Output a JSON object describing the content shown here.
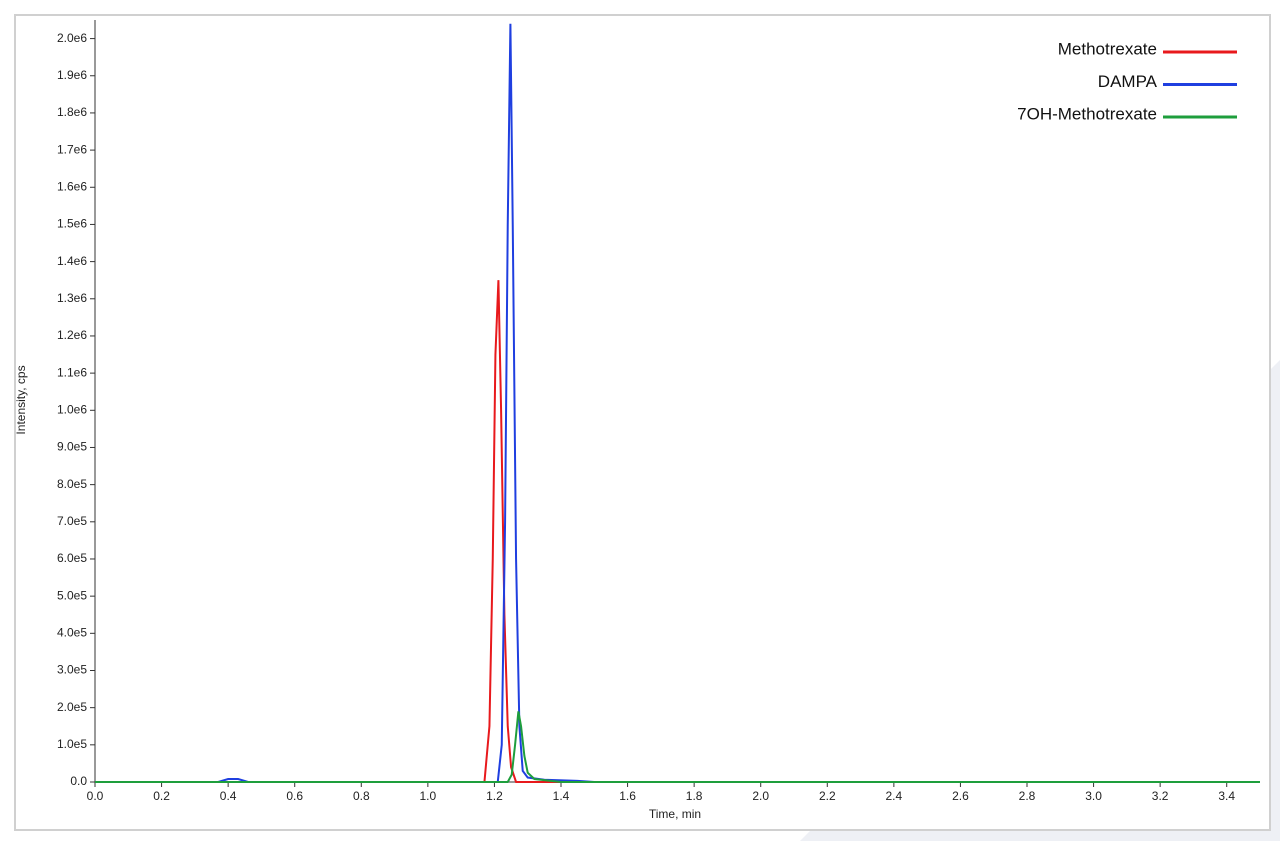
{
  "chart_data": {
    "type": "line",
    "xlabel": "Time, min",
    "ylabel": "Intensity, cps",
    "xlim": [
      0,
      3.5
    ],
    "ylim": [
      0,
      2050000
    ],
    "xticks": [
      {
        "value": 0,
        "label": "0.0"
      },
      {
        "value": 0.2,
        "label": "0.2"
      },
      {
        "value": 0.4,
        "label": "0.4"
      },
      {
        "value": 0.6,
        "label": "0.6"
      },
      {
        "value": 0.8,
        "label": "0.8"
      },
      {
        "value": 1.0,
        "label": "1.0"
      },
      {
        "value": 1.2,
        "label": "1.2"
      },
      {
        "value": 1.4,
        "label": "1.4"
      },
      {
        "value": 1.6,
        "label": "1.6"
      },
      {
        "value": 1.8,
        "label": "1.8"
      },
      {
        "value": 2.0,
        "label": "2.0"
      },
      {
        "value": 2.2,
        "label": "2.2"
      },
      {
        "value": 2.4,
        "label": "2.4"
      },
      {
        "value": 2.6,
        "label": "2.6"
      },
      {
        "value": 2.8,
        "label": "2.8"
      },
      {
        "value": 3.0,
        "label": "3.0"
      },
      {
        "value": 3.2,
        "label": "3.2"
      },
      {
        "value": 3.4,
        "label": "3.4"
      }
    ],
    "yticks": [
      {
        "value": 0,
        "label": "0.0"
      },
      {
        "value": 100000,
        "label": "1.0e5"
      },
      {
        "value": 200000,
        "label": "2.0e5"
      },
      {
        "value": 300000,
        "label": "3.0e5"
      },
      {
        "value": 400000,
        "label": "4.0e5"
      },
      {
        "value": 500000,
        "label": "5.0e5"
      },
      {
        "value": 600000,
        "label": "6.0e5"
      },
      {
        "value": 700000,
        "label": "7.0e5"
      },
      {
        "value": 800000,
        "label": "8.0e5"
      },
      {
        "value": 900000,
        "label": "9.0e5"
      },
      {
        "value": 1000000,
        "label": "1.0e6"
      },
      {
        "value": 1100000,
        "label": "1.1e6"
      },
      {
        "value": 1200000,
        "label": "1.2e6"
      },
      {
        "value": 1300000,
        "label": "1.3e6"
      },
      {
        "value": 1400000,
        "label": "1.4e6"
      },
      {
        "value": 1500000,
        "label": "1.5e6"
      },
      {
        "value": 1600000,
        "label": "1.6e6"
      },
      {
        "value": 1700000,
        "label": "1.7e6"
      },
      {
        "value": 1800000,
        "label": "1.8e6"
      },
      {
        "value": 1900000,
        "label": "1.9e6"
      },
      {
        "value": 2000000,
        "label": "2.0e6"
      }
    ],
    "legend": "upper right",
    "series": [
      {
        "name": "Methotrexate",
        "color": "#e8191c",
        "x": [
          0,
          1.17,
          1.185,
          1.195,
          1.203,
          1.212,
          1.22,
          1.23,
          1.24,
          1.25,
          1.265,
          1.8,
          3.5
        ],
        "values": [
          0,
          0,
          150000,
          600000,
          1150000,
          1350000,
          1000000,
          450000,
          150000,
          40000,
          0,
          0,
          0
        ]
      },
      {
        "name": "DAMPA",
        "color": "#1f3fe0",
        "x": [
          0,
          0.37,
          0.4,
          0.43,
          0.46,
          1.21,
          1.222,
          1.232,
          1.24,
          1.248,
          1.255,
          1.265,
          1.275,
          1.285,
          1.3,
          1.35,
          1.45,
          1.5,
          3.5
        ],
        "values": [
          0,
          0,
          8000,
          8000,
          0,
          0,
          100000,
          700000,
          1500000,
          2040000,
          1500000,
          600000,
          150000,
          30000,
          12000,
          6000,
          3000,
          0,
          0
        ]
      },
      {
        "name": "7OH-Methotrexate",
        "color": "#1e9e3c",
        "x": [
          0,
          1.24,
          1.252,
          1.262,
          1.272,
          1.28,
          1.29,
          1.3,
          1.32,
          1.4,
          3.5
        ],
        "values": [
          0,
          0,
          20000,
          100000,
          190000,
          150000,
          70000,
          25000,
          8000,
          0,
          0
        ]
      }
    ]
  }
}
